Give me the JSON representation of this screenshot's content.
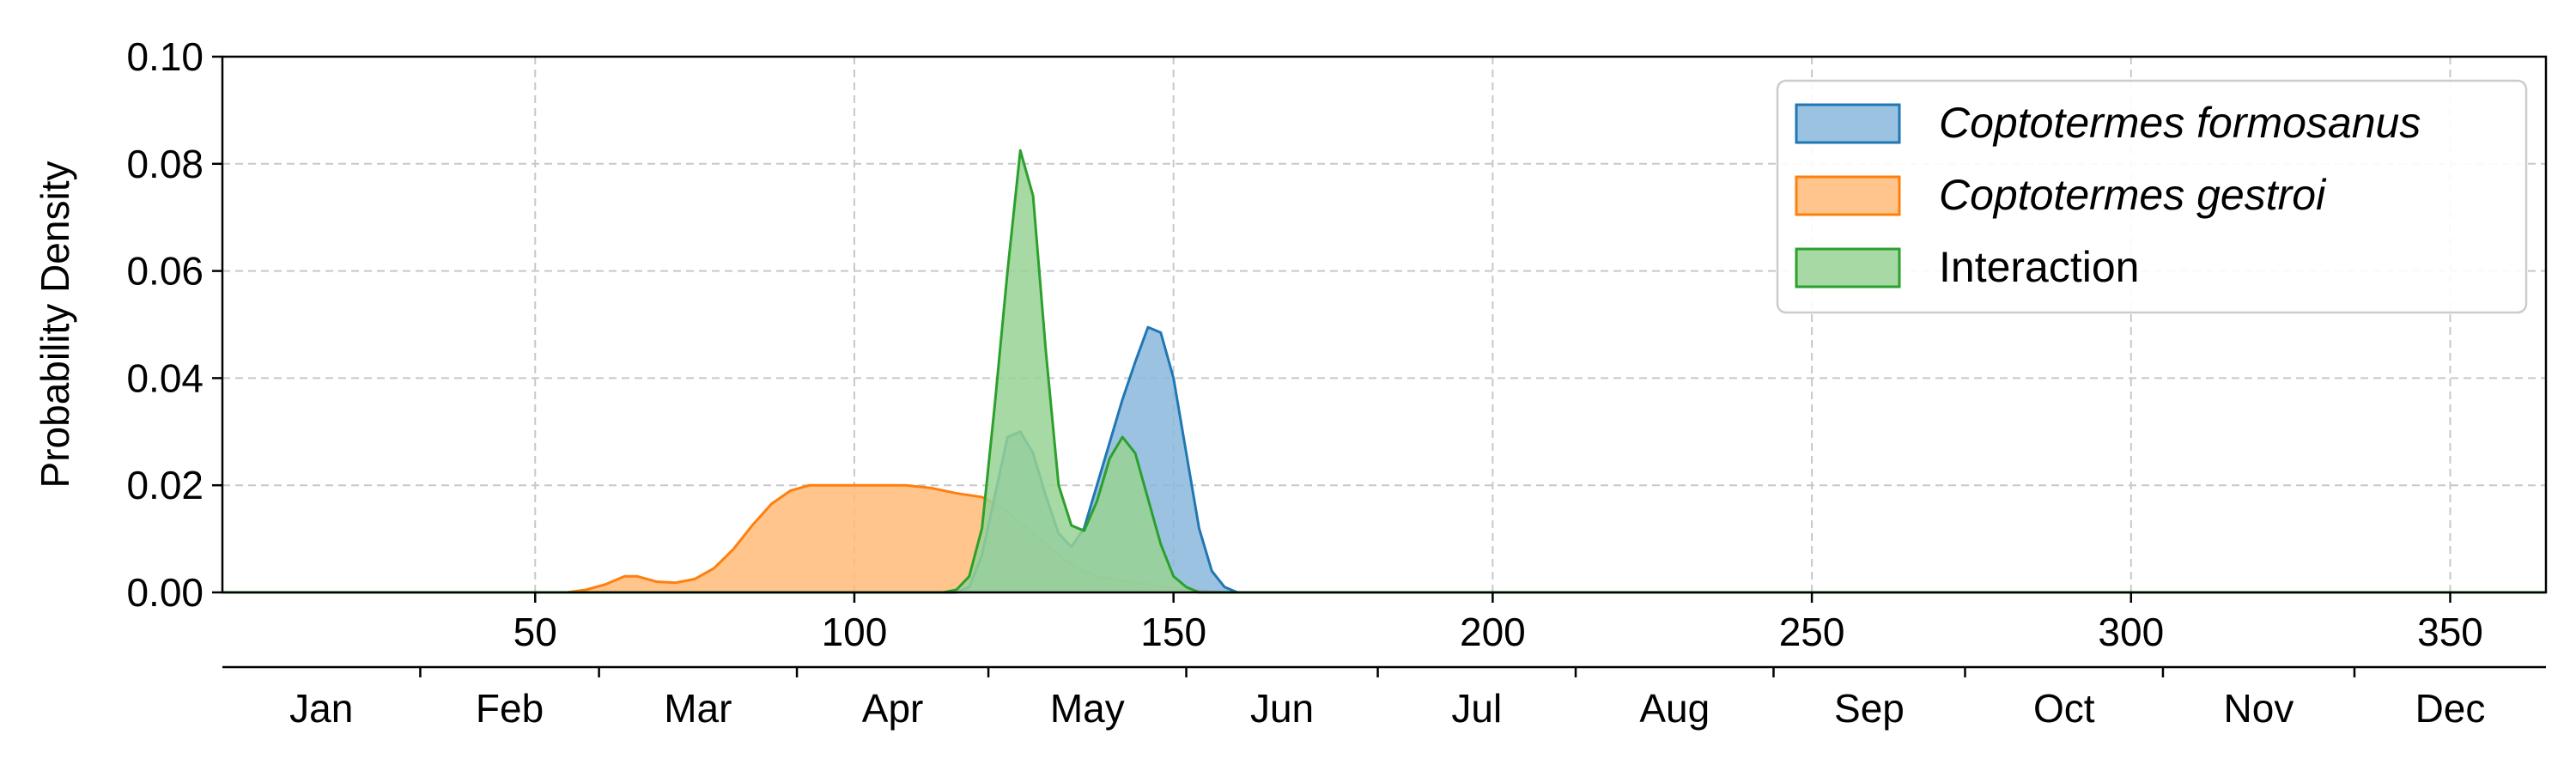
{
  "chart_data": {
    "type": "area",
    "xlabel": "",
    "ylabel": "Probability Density",
    "xlim": [
      1,
      365
    ],
    "ylim": [
      0,
      0.1
    ],
    "grid": true,
    "legend_position": "top-right",
    "x_ticks": [
      "50",
      "100",
      "150",
      "200",
      "250",
      "300",
      "350"
    ],
    "y_ticks": [
      "0.00",
      "0.02",
      "0.04",
      "0.06",
      "0.08",
      "0.10"
    ],
    "month_axis": {
      "labels": [
        "Jan",
        "Feb",
        "Mar",
        "Apr",
        "May",
        "Jun",
        "Jul",
        "Aug",
        "Sep",
        "Oct",
        "Nov",
        "Dec"
      ],
      "boundaries": [
        32,
        60,
        91,
        121,
        152,
        182,
        213,
        244,
        274,
        305,
        335
      ]
    },
    "series": [
      {
        "name": "Coptotermes gestroi",
        "italic": true,
        "line_color": "#ff7f0e",
        "fill_color": "#ffbb78",
        "points": [
          [
            1,
            0
          ],
          [
            55,
            0
          ],
          [
            58,
            0.0005
          ],
          [
            61,
            0.0015
          ],
          [
            64,
            0.003
          ],
          [
            66,
            0.003
          ],
          [
            69,
            0.002
          ],
          [
            72,
            0.0018
          ],
          [
            75,
            0.0025
          ],
          [
            78,
            0.0045
          ],
          [
            81,
            0.008
          ],
          [
            84,
            0.0125
          ],
          [
            87,
            0.0165
          ],
          [
            90,
            0.019
          ],
          [
            93,
            0.02
          ],
          [
            100,
            0.02
          ],
          [
            108,
            0.02
          ],
          [
            112,
            0.0195
          ],
          [
            116,
            0.0185
          ],
          [
            120,
            0.0178
          ],
          [
            123,
            0.016
          ],
          [
            126,
            0.013
          ],
          [
            129,
            0.01
          ],
          [
            132,
            0.007
          ],
          [
            135,
            0.0045
          ],
          [
            138,
            0.003
          ],
          [
            142,
            0.0022
          ],
          [
            146,
            0.0015
          ],
          [
            150,
            0.0008
          ],
          [
            154,
            0.0003
          ],
          [
            158,
            0
          ],
          [
            365,
            0
          ]
        ]
      },
      {
        "name": "Coptotermes formosanus",
        "italic": true,
        "line_color": "#1f77b4",
        "fill_color": "#8ab8dc",
        "points": [
          [
            1,
            0
          ],
          [
            116,
            0
          ],
          [
            118,
            0.001
          ],
          [
            120,
            0.007
          ],
          [
            122,
            0.018
          ],
          [
            124,
            0.029
          ],
          [
            126,
            0.03
          ],
          [
            128,
            0.026
          ],
          [
            130,
            0.018
          ],
          [
            132,
            0.011
          ],
          [
            134,
            0.0085
          ],
          [
            136,
            0.012
          ],
          [
            138,
            0.02
          ],
          [
            140,
            0.028
          ],
          [
            142,
            0.036
          ],
          [
            144,
            0.043
          ],
          [
            146,
            0.0495
          ],
          [
            148,
            0.0485
          ],
          [
            150,
            0.04
          ],
          [
            152,
            0.026
          ],
          [
            154,
            0.012
          ],
          [
            156,
            0.004
          ],
          [
            158,
            0.001
          ],
          [
            160,
            0
          ],
          [
            365,
            0
          ]
        ]
      },
      {
        "name": "Interaction",
        "italic": false,
        "line_color": "#2ca02c",
        "fill_color": "#98d294",
        "points": [
          [
            1,
            0
          ],
          [
            114,
            0
          ],
          [
            116,
            0.0005
          ],
          [
            118,
            0.003
          ],
          [
            120,
            0.012
          ],
          [
            122,
            0.035
          ],
          [
            124,
            0.06
          ],
          [
            126,
            0.0825
          ],
          [
            128,
            0.074
          ],
          [
            130,
            0.045
          ],
          [
            132,
            0.02
          ],
          [
            134,
            0.0125
          ],
          [
            136,
            0.0115
          ],
          [
            138,
            0.017
          ],
          [
            140,
            0.025
          ],
          [
            142,
            0.029
          ],
          [
            144,
            0.026
          ],
          [
            146,
            0.0175
          ],
          [
            148,
            0.009
          ],
          [
            150,
            0.003
          ],
          [
            152,
            0.001
          ],
          [
            154,
            0
          ],
          [
            365,
            0
          ]
        ]
      }
    ]
  }
}
